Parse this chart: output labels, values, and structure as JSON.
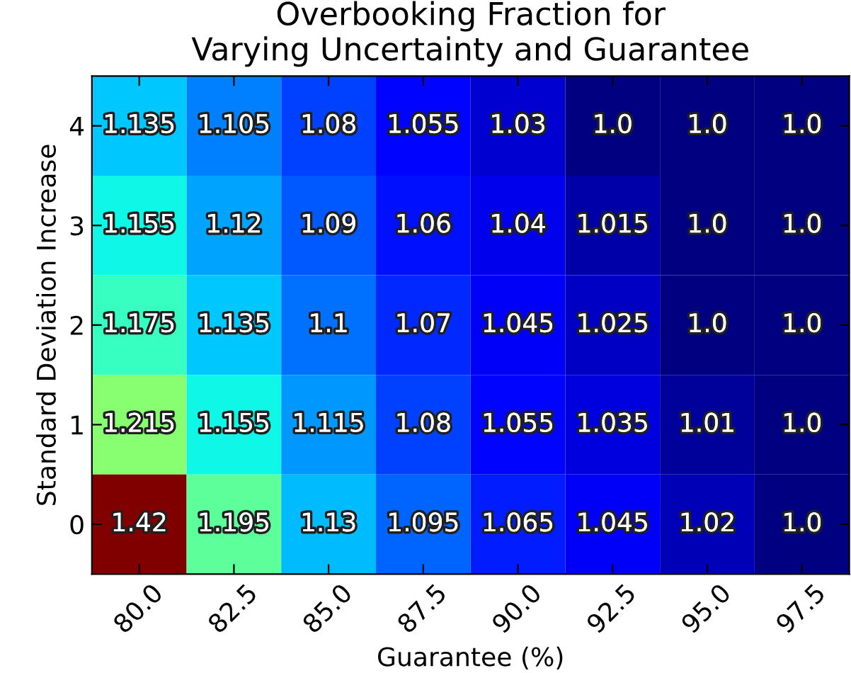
{
  "chart_data": {
    "type": "heatmap",
    "title": "Overbooking Fraction for\nVarying Uncertainty and Guarantee",
    "xlabel": "Guarantee (%)",
    "ylabel": "Standard Deviation Increase",
    "categories": [
      "80.0",
      "82.5",
      "85.0",
      "87.5",
      "90.0",
      "92.5",
      "95.0",
      "97.5"
    ],
    "y_categories": [
      "4",
      "3",
      "2",
      "1",
      "0"
    ],
    "cells": [
      [
        1.135,
        1.105,
        1.08,
        1.055,
        1.03,
        1.0,
        1.0,
        1.0
      ],
      [
        1.155,
        1.12,
        1.09,
        1.06,
        1.04,
        1.015,
        1.0,
        1.0
      ],
      [
        1.175,
        1.135,
        1.1,
        1.07,
        1.045,
        1.025,
        1.0,
        1.0
      ],
      [
        1.215,
        1.155,
        1.115,
        1.08,
        1.055,
        1.035,
        1.01,
        1.0
      ],
      [
        1.42,
        1.195,
        1.13,
        1.095,
        1.065,
        1.045,
        1.02,
        1.0
      ]
    ],
    "cell_labels": [
      [
        "1.135",
        "1.105",
        "1.08",
        "1.055",
        "1.03",
        "1.0",
        "1.0",
        "1.0"
      ],
      [
        "1.155",
        "1.12",
        "1.09",
        "1.06",
        "1.04",
        "1.015",
        "1.0",
        "1.0"
      ],
      [
        "1.175",
        "1.135",
        "1.1",
        "1.07",
        "1.045",
        "1.025",
        "1.0",
        "1.0"
      ],
      [
        "1.215",
        "1.155",
        "1.115",
        "1.08",
        "1.055",
        "1.035",
        "1.01",
        "1.0"
      ],
      [
        "1.42",
        "1.195",
        "1.13",
        "1.095",
        "1.065",
        "1.045",
        "1.02",
        "1.0"
      ]
    ],
    "grid": false
  }
}
